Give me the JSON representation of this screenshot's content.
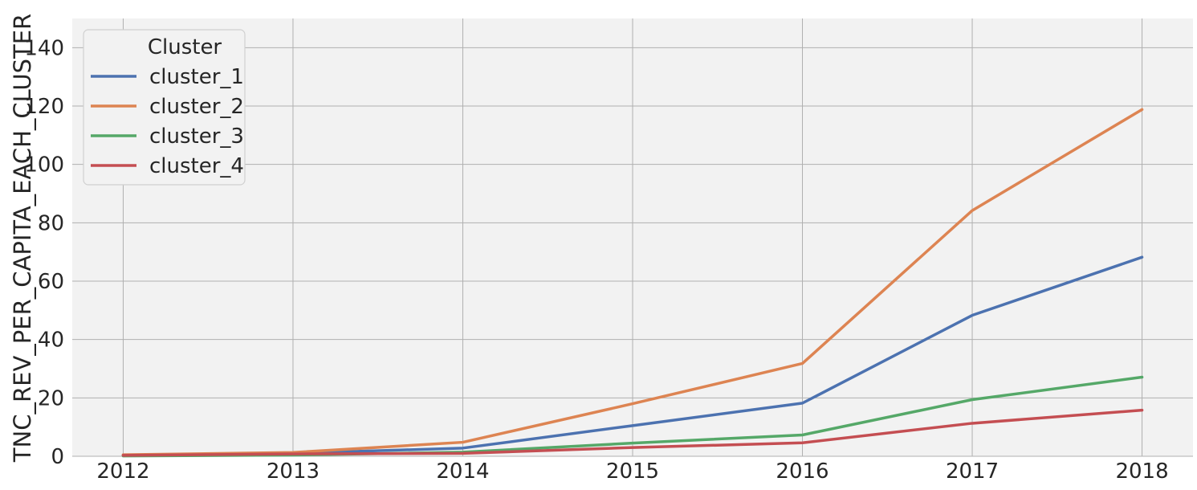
{
  "chart_data": {
    "type": "line",
    "x": [
      2012,
      2013,
      2014,
      2015,
      2016,
      2017,
      2018
    ],
    "xlabel": "",
    "ylabel": "TNC_REV_PER_CAPITA_EACH_CLUSTER",
    "xlim": [
      2011.7,
      2018.3
    ],
    "ylim": [
      0,
      150
    ],
    "x_ticks": [
      "2012",
      "2013",
      "2014",
      "2015",
      "2016",
      "2017",
      "2018"
    ],
    "y_ticks": [
      "0",
      "20",
      "40",
      "60",
      "80",
      "100",
      "120",
      "140"
    ],
    "grid": true,
    "legend": {
      "title": "Cluster",
      "position": "top-left"
    },
    "series": [
      {
        "name": "cluster_1",
        "color": "#4c72b0",
        "values": [
          0.4,
          1.0,
          2.8,
          10.5,
          18.2,
          48.3,
          68.2
        ]
      },
      {
        "name": "cluster_2",
        "color": "#dd8452",
        "values": [
          0.5,
          1.3,
          4.8,
          18.0,
          31.8,
          84.2,
          118.8
        ]
      },
      {
        "name": "cluster_3",
        "color": "#55a868",
        "values": [
          0.1,
          0.4,
          1.4,
          4.5,
          7.3,
          19.4,
          27.1
        ]
      },
      {
        "name": "cluster_4",
        "color": "#c44e52",
        "values": [
          0.3,
          0.8,
          1.0,
          3.0,
          4.6,
          11.3,
          15.8
        ]
      }
    ]
  }
}
